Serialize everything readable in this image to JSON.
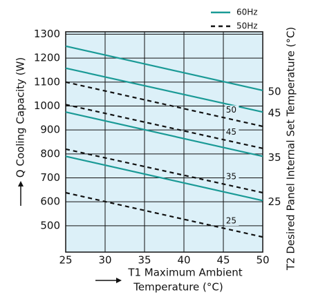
{
  "chart_data": {
    "type": "line",
    "xlabel": [
      "T1 Maximum Ambient",
      "Temperature (°C)"
    ],
    "ylabel": "Q Cooling Capacity (W)",
    "y2label": "T2 Desired Panel Internal Set Temperature (°C)",
    "x": [
      25,
      50
    ],
    "xlim": [
      25,
      50
    ],
    "xticks": [
      25,
      30,
      35,
      40,
      45,
      50
    ],
    "ylim": [
      390,
      1310
    ],
    "yticks": [
      500,
      600,
      700,
      800,
      900,
      1000,
      1100,
      1200,
      1300
    ],
    "grid": true,
    "background": "#dcf0f8",
    "series": [
      {
        "name": "60Hz",
        "color": "#1a9a96",
        "dashed": false,
        "lines": [
          {
            "label": "50",
            "values": [
              1250,
              1065
            ]
          },
          {
            "label": "45",
            "values": [
              1158,
              975
            ]
          },
          {
            "label": "35",
            "values": [
              975,
              790
            ]
          },
          {
            "label": "25",
            "values": [
              790,
              605
            ]
          }
        ]
      },
      {
        "name": "50Hz",
        "color": "#111111",
        "dashed": true,
        "lines": [
          {
            "label": "50",
            "values": [
              1100,
              915
            ]
          },
          {
            "label": "45",
            "values": [
              1006,
              823
            ]
          },
          {
            "label": "35",
            "values": [
              820,
              638
            ]
          },
          {
            "label": "25",
            "values": [
              638,
              453
            ]
          }
        ]
      }
    ]
  }
}
